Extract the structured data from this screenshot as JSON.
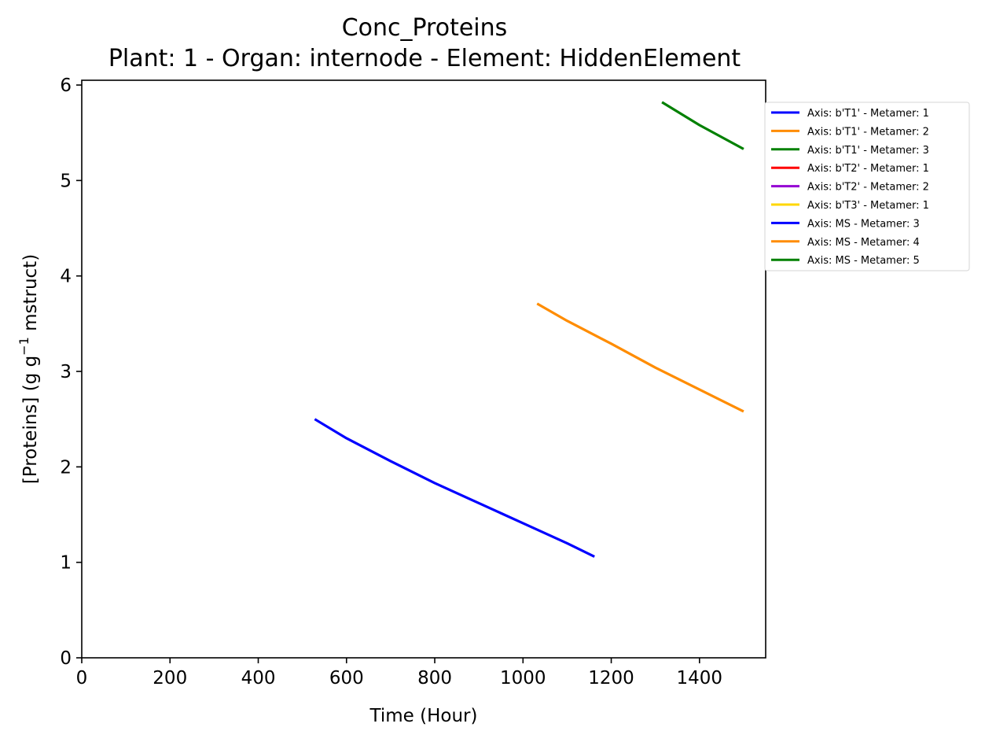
{
  "chart_data": {
    "type": "line",
    "title": "Conc_Proteins",
    "subtitle": "Plant: 1 - Organ: internode - Element: HiddenElement",
    "xlabel": "Time (Hour)",
    "ylabel": "[Proteins] (g g",
    "ylabel_sup": "−1",
    "ylabel_suffix": " mstruct)",
    "xlim": [
      0,
      1550
    ],
    "ylim": [
      0,
      6.05
    ],
    "xticks": [
      0,
      200,
      400,
      600,
      800,
      1000,
      1200,
      1400
    ],
    "yticks": [
      0,
      1,
      2,
      3,
      4,
      5,
      6
    ],
    "grid": false,
    "legend_position": "outside-top-right",
    "series": [
      {
        "name": "Axis: b'T1' - Metamer: 1",
        "color": "#0000ff",
        "x": [],
        "y": []
      },
      {
        "name": "Axis: b'T1' - Metamer: 2",
        "color": "#ff8c00",
        "x": [],
        "y": []
      },
      {
        "name": "Axis: b'T1' - Metamer: 3",
        "color": "#008000",
        "x": [],
        "y": []
      },
      {
        "name": "Axis: b'T2' - Metamer: 1",
        "color": "#ff0000",
        "x": [],
        "y": []
      },
      {
        "name": "Axis: b'T2' - Metamer: 2",
        "color": "#9400d3",
        "x": [],
        "y": []
      },
      {
        "name": "Axis: b'T3' - Metamer: 1",
        "color": "#ffd700",
        "x": [],
        "y": []
      },
      {
        "name": "Axis: MS - Metamer: 3",
        "color": "#0000ff",
        "x": [
          528,
          600,
          700,
          800,
          900,
          1000,
          1100,
          1162
        ],
        "y": [
          2.5,
          2.3,
          2.06,
          1.83,
          1.62,
          1.41,
          1.2,
          1.06
        ]
      },
      {
        "name": "Axis: MS - Metamer: 4",
        "color": "#ff8c00",
        "x": [
          1032,
          1100,
          1200,
          1300,
          1400,
          1500
        ],
        "y": [
          3.71,
          3.53,
          3.29,
          3.04,
          2.81,
          2.58
        ]
      },
      {
        "name": "Axis: MS - Metamer: 5",
        "color": "#008000",
        "x": [
          1315,
          1400,
          1500
        ],
        "y": [
          5.82,
          5.58,
          5.33
        ]
      }
    ]
  }
}
